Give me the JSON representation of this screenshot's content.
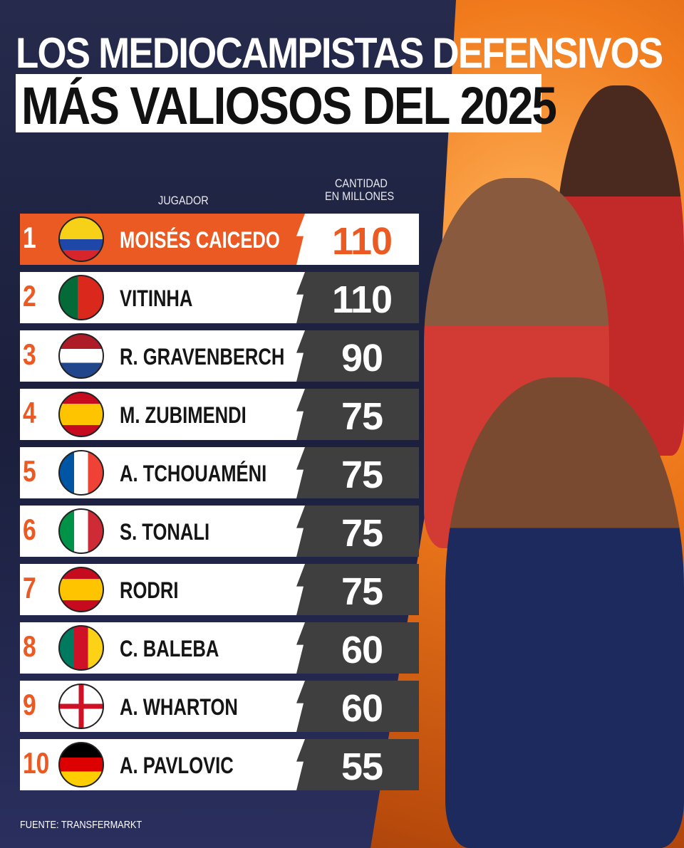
{
  "title_line1": "LOS MEDIOCAMPISTAS DEFENSIVOS",
  "title_line2": "MÁS VALIOSOS DEL 2025",
  "headers": {
    "player": "JUGADOR",
    "value_line1": "CANTIDAD",
    "value_line2": "EN MILLONES"
  },
  "source": "FUENTE: TRANSFERMARKT",
  "colors": {
    "accent": "#ea5a22",
    "value_box": "#3f3f40",
    "background": "#1d2140"
  },
  "chart_data": {
    "type": "table",
    "columns": [
      "JUGADOR",
      "CANTIDAD EN MILLONES"
    ],
    "rows": [
      {
        "rank": "1",
        "name": "MOISÉS CAICEDO",
        "value": "110",
        "flag": "ecuador-flag-icon",
        "flag_bg": "linear-gradient(180deg,#f7d117 0 50%,#1f47a8 50% 75%,#d7262b 75%)"
      },
      {
        "rank": "2",
        "name": "VITINHA",
        "value": "110",
        "flag": "portugal-flag-icon",
        "flag_bg": "linear-gradient(90deg,#046a38 0 42%,#da291c 42%)"
      },
      {
        "rank": "3",
        "name": "R. GRAVENBERCH",
        "value": "90",
        "flag": "netherlands-flag-icon",
        "flag_bg": "linear-gradient(180deg,#ae1c28 0 33%,#fff 33% 66%,#21468b 66%)"
      },
      {
        "rank": "4",
        "name": "M. ZUBIMENDI",
        "value": "75",
        "flag": "spain-flag-icon",
        "flag_bg": "linear-gradient(180deg,#c60b1e 0 25%,#ffc400 25% 75%,#c60b1e 75%)"
      },
      {
        "rank": "5",
        "name": "A. TCHOUAMÉNI",
        "value": "75",
        "flag": "france-flag-icon",
        "flag_bg": "linear-gradient(90deg,#0055a4 0 33%,#fff 33% 66%,#ef4135 66%)"
      },
      {
        "rank": "6",
        "name": "S. TONALI",
        "value": "75",
        "flag": "italy-flag-icon",
        "flag_bg": "linear-gradient(90deg,#009246 0 33%,#fff 33% 66%,#ce2b37 66%)"
      },
      {
        "rank": "7",
        "name": "RODRI",
        "value": "75",
        "flag": "spain-flag-icon",
        "flag_bg": "linear-gradient(180deg,#c60b1e 0 25%,#ffc400 25% 75%,#c60b1e 75%)"
      },
      {
        "rank": "8",
        "name": "C. BALEBA",
        "value": "60",
        "flag": "cameroon-flag-icon",
        "flag_bg": "linear-gradient(90deg,#007a5e 0 33%,#ce1126 33% 66%,#fcd116 66%)"
      },
      {
        "rank": "9",
        "name": "A. WHARTON",
        "value": "60",
        "flag": "england-flag-icon",
        "flag_bg": "linear-gradient(90deg,transparent 0 44%,#ce1124 44% 56%,transparent 56%),linear-gradient(180deg,#fff 0 44%,#ce1124 44% 56%,#fff 56%)"
      },
      {
        "rank": "10",
        "name": "A. PAVLOVIC",
        "value": "55",
        "flag": "germany-flag-icon",
        "flag_bg": "linear-gradient(180deg,#000 0 33%,#dd0000 33% 66%,#ffce00 66%)"
      }
    ]
  }
}
